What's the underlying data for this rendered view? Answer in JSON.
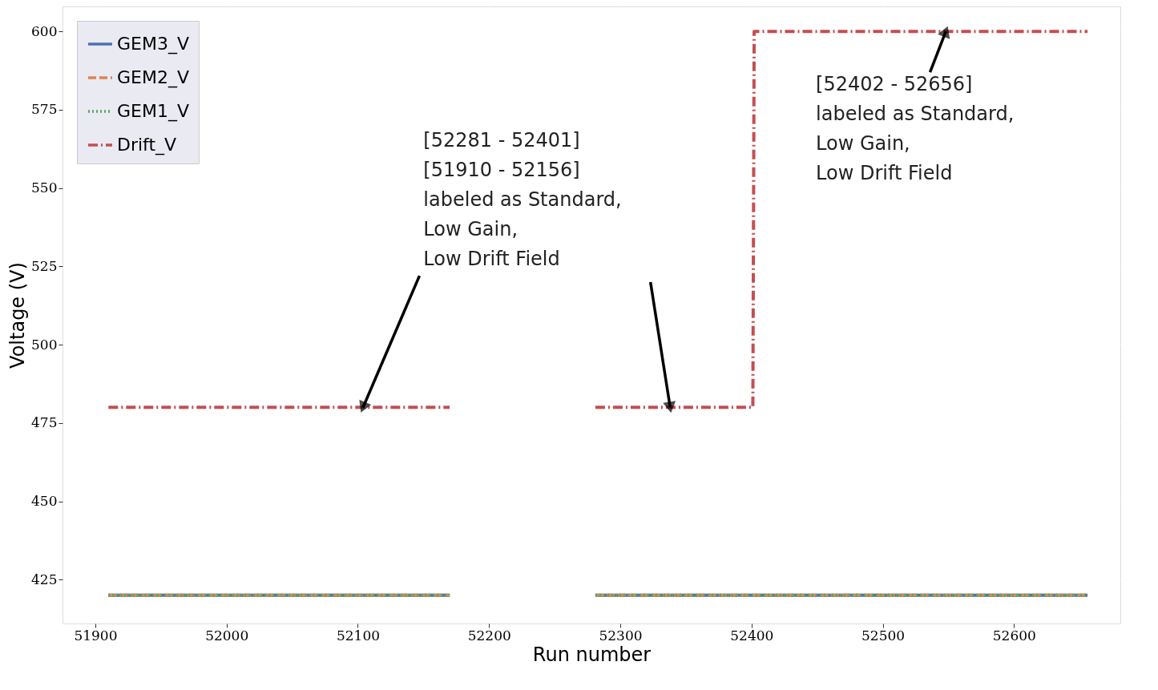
{
  "chart_data": {
    "type": "line",
    "xlabel": "Run number",
    "ylabel": "Voltage (V)",
    "series": [
      {
        "name": "GEM3_V",
        "color": "#4c72b0",
        "line_style": "solid",
        "x": [
          51910,
          52170,
          52220,
          52281,
          52656
        ],
        "values": [
          420,
          420,
          null,
          420,
          420
        ]
      },
      {
        "name": "GEM2_V",
        "color": "#dd8452",
        "line_style": "dashed",
        "x": [
          51910,
          52170,
          52220,
          52281,
          52656
        ],
        "values": [
          420,
          420,
          null,
          420,
          420
        ]
      },
      {
        "name": "GEM1_V",
        "color": "#55a868",
        "line_style": "dotted",
        "x": [
          51910,
          52170,
          52220,
          52281,
          52656
        ],
        "values": [
          420,
          420,
          null,
          420,
          420
        ]
      },
      {
        "name": "Drift_V",
        "color": "#c44e52",
        "line_style": "dashdot",
        "x": [
          51910,
          52170,
          52220,
          52281,
          52401,
          52402,
          52656
        ],
        "values": [
          480,
          480,
          null,
          480,
          480,
          600,
          600
        ]
      }
    ],
    "xlim": [
      51875,
      52681
    ],
    "ylim": [
      411,
      608
    ],
    "xticks": [
      51900,
      52000,
      52100,
      52200,
      52300,
      52400,
      52500,
      52600
    ],
    "yticks": [
      425,
      450,
      475,
      500,
      525,
      550,
      575,
      600
    ],
    "annotations": [
      {
        "text": "[52281 - 52401]\n[51910 - 52156]\nlabeled as Standard,\nLow Gain,\nLow Drift Field",
        "x": 52104,
        "y": 480
      },
      {
        "text": "[52402 - 52656]\nlabeled as Standard,\nLow Gain,\nLow Drift Field",
        "x": 52548,
        "y": 600
      }
    ],
    "grid": true,
    "legend": "top left",
    "marker": "none"
  }
}
